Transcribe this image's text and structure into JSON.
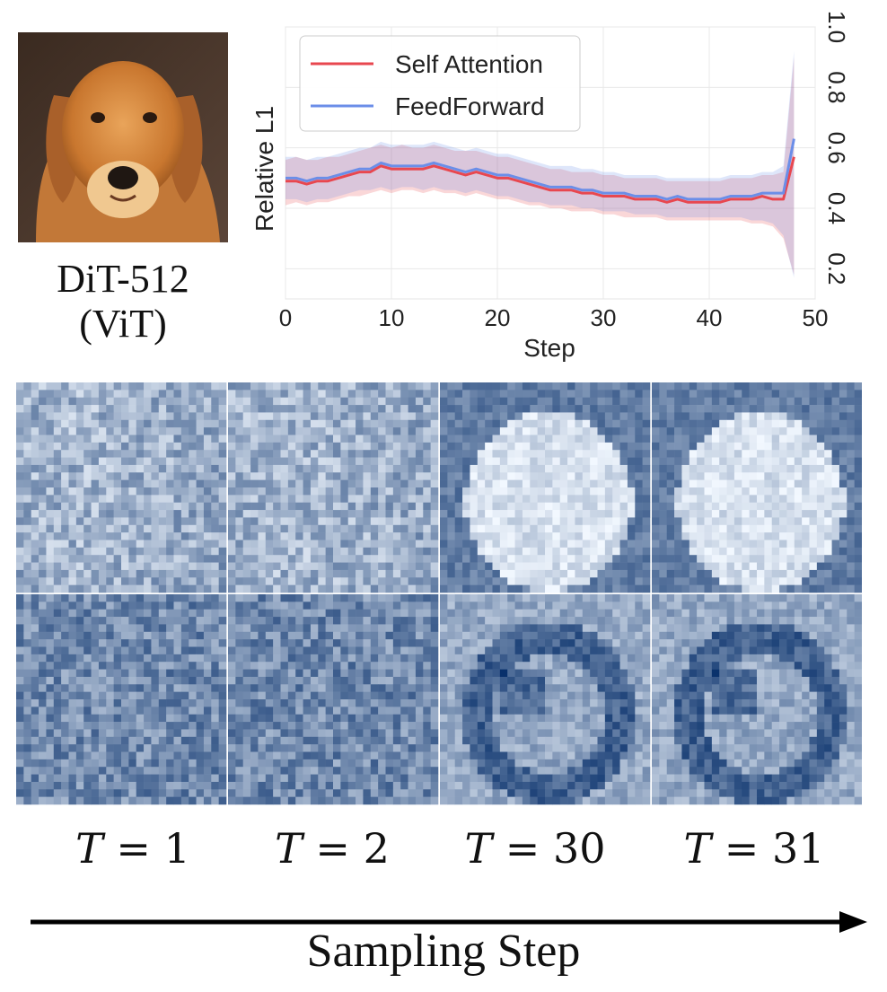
{
  "figure": {
    "model_name": "DiT-512",
    "model_arch": "(ViT)",
    "image_subject": "golden retriever dog",
    "timestep_labels": [
      {
        "var": "T",
        "value": "1"
      },
      {
        "var": "T",
        "value": "2"
      },
      {
        "var": "T",
        "value": "30"
      },
      {
        "var": "T",
        "value": "31"
      }
    ],
    "axis_arrow_label": "Sampling Step"
  },
  "colors": {
    "self_attention": "#e8474f",
    "feedforward": "#6b8ee8",
    "heat_dark": "#08306b",
    "heat_light": "#f2f8ff"
  },
  "chart_data": {
    "type": "line",
    "title": "",
    "xlabel": "Step",
    "ylabel": "Relative L1",
    "xlim": [
      0,
      50
    ],
    "ylim": [
      0.1,
      1.0
    ],
    "xticks": [
      0,
      10,
      20,
      30,
      40,
      50
    ],
    "yticks": [
      0.2,
      0.4,
      0.6,
      0.8,
      1.0
    ],
    "ytick_labels": [
      "0.2",
      "0.4",
      "0.6",
      "0.8",
      "1.0"
    ],
    "grid": true,
    "legend_position": "top-left",
    "x": [
      0,
      1,
      2,
      3,
      4,
      5,
      6,
      7,
      8,
      9,
      10,
      11,
      12,
      13,
      14,
      15,
      16,
      17,
      18,
      19,
      20,
      21,
      22,
      23,
      24,
      25,
      26,
      27,
      28,
      29,
      30,
      31,
      32,
      33,
      34,
      35,
      36,
      37,
      38,
      39,
      40,
      41,
      42,
      43,
      44,
      45,
      46,
      47,
      48
    ],
    "series": [
      {
        "name": "Self Attention",
        "values": [
          0.49,
          0.49,
          0.48,
          0.49,
          0.49,
          0.5,
          0.51,
          0.52,
          0.52,
          0.54,
          0.53,
          0.53,
          0.53,
          0.53,
          0.54,
          0.53,
          0.52,
          0.51,
          0.52,
          0.51,
          0.5,
          0.5,
          0.49,
          0.48,
          0.47,
          0.46,
          0.46,
          0.46,
          0.45,
          0.45,
          0.44,
          0.44,
          0.44,
          0.43,
          0.43,
          0.43,
          0.42,
          0.43,
          0.42,
          0.42,
          0.42,
          0.42,
          0.43,
          0.43,
          0.43,
          0.44,
          0.43,
          0.43,
          0.57
        ],
        "lower": [
          0.41,
          0.42,
          0.41,
          0.42,
          0.42,
          0.43,
          0.44,
          0.44,
          0.45,
          0.46,
          0.45,
          0.46,
          0.46,
          0.45,
          0.46,
          0.45,
          0.45,
          0.44,
          0.45,
          0.44,
          0.43,
          0.43,
          0.42,
          0.41,
          0.41,
          0.4,
          0.4,
          0.39,
          0.39,
          0.39,
          0.38,
          0.38,
          0.37,
          0.37,
          0.37,
          0.37,
          0.36,
          0.36,
          0.36,
          0.36,
          0.36,
          0.36,
          0.36,
          0.36,
          0.35,
          0.35,
          0.34,
          0.3,
          0.18
        ],
        "upper": [
          0.56,
          0.57,
          0.56,
          0.56,
          0.57,
          0.57,
          0.58,
          0.59,
          0.6,
          0.61,
          0.6,
          0.61,
          0.6,
          0.6,
          0.61,
          0.6,
          0.59,
          0.59,
          0.59,
          0.58,
          0.57,
          0.57,
          0.56,
          0.55,
          0.54,
          0.53,
          0.53,
          0.52,
          0.52,
          0.52,
          0.51,
          0.51,
          0.5,
          0.5,
          0.5,
          0.5,
          0.49,
          0.49,
          0.49,
          0.49,
          0.49,
          0.49,
          0.5,
          0.5,
          0.5,
          0.51,
          0.51,
          0.52,
          0.9
        ]
      },
      {
        "name": "FeedForward",
        "values": [
          0.5,
          0.5,
          0.49,
          0.5,
          0.5,
          0.51,
          0.52,
          0.53,
          0.53,
          0.55,
          0.54,
          0.54,
          0.54,
          0.54,
          0.55,
          0.54,
          0.53,
          0.52,
          0.53,
          0.52,
          0.51,
          0.51,
          0.5,
          0.49,
          0.48,
          0.47,
          0.47,
          0.47,
          0.46,
          0.46,
          0.45,
          0.45,
          0.45,
          0.44,
          0.44,
          0.44,
          0.43,
          0.44,
          0.43,
          0.43,
          0.43,
          0.43,
          0.44,
          0.44,
          0.44,
          0.45,
          0.45,
          0.45,
          0.63
        ],
        "lower": [
          0.43,
          0.43,
          0.42,
          0.43,
          0.43,
          0.44,
          0.45,
          0.46,
          0.46,
          0.47,
          0.46,
          0.47,
          0.47,
          0.46,
          0.47,
          0.46,
          0.46,
          0.45,
          0.46,
          0.45,
          0.44,
          0.44,
          0.43,
          0.42,
          0.42,
          0.41,
          0.41,
          0.41,
          0.4,
          0.4,
          0.39,
          0.39,
          0.39,
          0.38,
          0.38,
          0.38,
          0.37,
          0.37,
          0.37,
          0.37,
          0.37,
          0.37,
          0.37,
          0.37,
          0.36,
          0.36,
          0.35,
          0.31,
          0.17
        ],
        "upper": [
          0.57,
          0.57,
          0.56,
          0.57,
          0.57,
          0.58,
          0.59,
          0.6,
          0.6,
          0.62,
          0.61,
          0.61,
          0.61,
          0.61,
          0.62,
          0.61,
          0.6,
          0.59,
          0.6,
          0.59,
          0.58,
          0.58,
          0.57,
          0.56,
          0.55,
          0.54,
          0.54,
          0.54,
          0.53,
          0.53,
          0.52,
          0.52,
          0.51,
          0.51,
          0.51,
          0.51,
          0.5,
          0.5,
          0.5,
          0.5,
          0.5,
          0.5,
          0.51,
          0.51,
          0.51,
          0.52,
          0.52,
          0.54,
          0.92
        ]
      }
    ]
  }
}
